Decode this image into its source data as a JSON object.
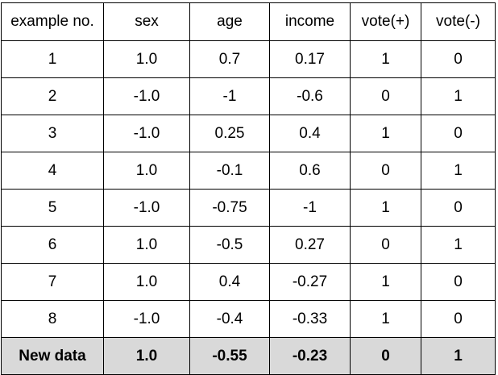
{
  "table": {
    "columns": [
      "example no.",
      "sex",
      "age",
      "income",
      "vote(+)",
      "vote(-)"
    ],
    "rows": [
      [
        "1",
        "1.0",
        "0.7",
        "0.17",
        "1",
        "0"
      ],
      [
        "2",
        "-1.0",
        "-1",
        "-0.6",
        "0",
        "1"
      ],
      [
        "3",
        "-1.0",
        "0.25",
        "0.4",
        "1",
        "0"
      ],
      [
        "4",
        "1.0",
        "-0.1",
        "0.6",
        "0",
        "1"
      ],
      [
        "5",
        "-1.0",
        "-0.75",
        "-1",
        "1",
        "0"
      ],
      [
        "6",
        "1.0",
        "-0.5",
        "0.27",
        "0",
        "1"
      ],
      [
        "7",
        "1.0",
        "0.4",
        "-0.27",
        "1",
        "0"
      ],
      [
        "8",
        "-1.0",
        "-0.4",
        "-0.33",
        "1",
        "0"
      ]
    ],
    "new_data_row": [
      "New data",
      "1.0",
      "-0.55",
      "-0.23",
      "0",
      "1"
    ],
    "highlight_color": "#d9d9d9"
  }
}
